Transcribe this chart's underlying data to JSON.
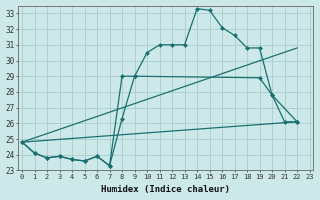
{
  "xlabel": "Humidex (Indice chaleur)",
  "bg_color": "#cce8e8",
  "grid_color": "#aacccc",
  "line_color": "#1a7070",
  "ylim": [
    23.0,
    33.5
  ],
  "xlim": [
    -0.3,
    23.3
  ],
  "yticks": [
    23,
    24,
    25,
    26,
    27,
    28,
    29,
    30,
    31,
    32,
    33
  ],
  "xticks": [
    0,
    1,
    2,
    3,
    4,
    5,
    6,
    7,
    8,
    9,
    10,
    11,
    12,
    13,
    14,
    15,
    16,
    17,
    18,
    19,
    20,
    21,
    22,
    23
  ],
  "line1_x": [
    0,
    1,
    2,
    3,
    4,
    5,
    6,
    7,
    8,
    9,
    10,
    11,
    12,
    13,
    14,
    15,
    16,
    17,
    18,
    19,
    20,
    21,
    22
  ],
  "line1_y": [
    24.8,
    24.1,
    23.8,
    23.9,
    23.7,
    23.6,
    23.9,
    23.3,
    29.0,
    29.0,
    30.5,
    31.0,
    31.0,
    31.0,
    33.3,
    33.2,
    32.1,
    31.6,
    30.8,
    30.8,
    27.8,
    26.1,
    26.1
  ],
  "line2_x": [
    0,
    1,
    2,
    3,
    4,
    5,
    6,
    7,
    8,
    9,
    19,
    20,
    22
  ],
  "line2_y": [
    24.8,
    24.1,
    23.8,
    23.9,
    23.7,
    23.6,
    23.9,
    23.3,
    26.3,
    29.0,
    28.9,
    27.8,
    26.1
  ],
  "line3_x": [
    0,
    22
  ],
  "line3_y": [
    24.8,
    30.8
  ],
  "line4_x": [
    0,
    22
  ],
  "line4_y": [
    24.8,
    26.1
  ]
}
